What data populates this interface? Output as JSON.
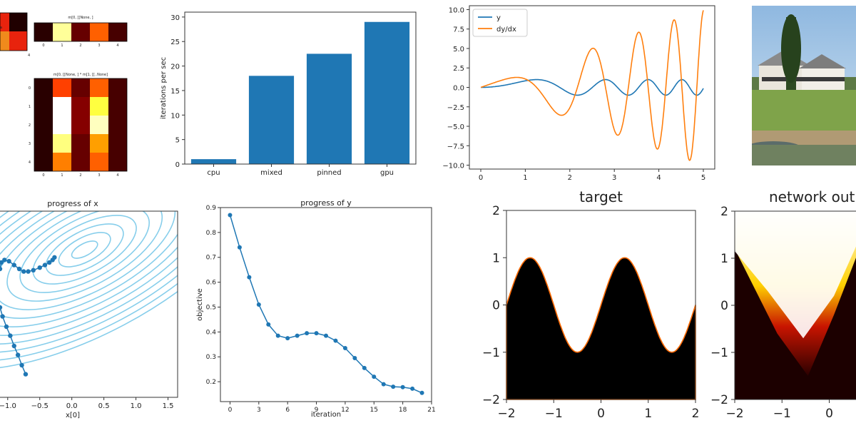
{
  "chart_data": [
    {
      "type": "heatmap",
      "panel": "heatmap-small-row",
      "title": "m[0, [[None, ]",
      "x_ticks": [
        "0",
        "1",
        "2",
        "3",
        "4"
      ],
      "values": [
        [
          0.05,
          0.92,
          0.15,
          0.55,
          0.1
        ]
      ]
    },
    {
      "type": "heatmap",
      "panel": "heatmap-product",
      "title": "m[0, [[None, ] * m[1, [[..None]",
      "x_ticks": [
        "0",
        "1",
        "2",
        "3",
        "4"
      ],
      "y_ticks": [
        "0",
        "1",
        "2",
        "3",
        "4"
      ],
      "values": [
        [
          0.05,
          0.5,
          0.15,
          0.55,
          0.1
        ],
        [
          0.05,
          1.0,
          0.2,
          0.85,
          0.1
        ],
        [
          0.05,
          1.0,
          0.2,
          0.95,
          0.1
        ],
        [
          0.05,
          0.9,
          0.15,
          0.65,
          0.1
        ],
        [
          0.05,
          0.6,
          0.15,
          0.55,
          0.1
        ]
      ]
    },
    {
      "type": "bar",
      "panel": "iterations-bar",
      "categories": [
        "cpu",
        "mixed",
        "pinned",
        "gpu"
      ],
      "values": [
        1,
        18,
        22.5,
        29
      ],
      "ylabel": "iterations per sec",
      "ylim": [
        0,
        31
      ],
      "y_ticks": [
        0,
        5,
        10,
        15,
        20,
        25,
        30
      ],
      "color": "#1f77b4"
    },
    {
      "type": "line",
      "panel": "derivative-line",
      "series": [
        {
          "name": "y",
          "color": "#1f77b4"
        },
        {
          "name": "dy/dx",
          "color": "#ff7f0e"
        }
      ],
      "x_range": [
        0,
        5
      ],
      "ylim": [
        -10.5,
        10.5
      ],
      "x_ticks": [
        0,
        1,
        2,
        3,
        4,
        5
      ],
      "y_ticks": [
        "10.0",
        "7.5",
        "5.0",
        "2.5",
        "0.0",
        "−2.5",
        "−5.0",
        "−7.5",
        "−10.0"
      ],
      "legend": "top-left"
    },
    {
      "type": "line",
      "panel": "progress-x",
      "title": "progress of x",
      "xlabel": "x[0]",
      "x_ticks": [
        "−1.0",
        "−0.5",
        "0.0",
        "0.5",
        "1.0",
        "1.5"
      ],
      "path_x": [
        -1.12,
        -1.1,
        -1.05,
        -0.98,
        -0.9,
        -0.82,
        -0.75,
        -0.68,
        -0.6,
        -0.5,
        -0.42,
        -0.35,
        -0.3,
        -0.27
      ],
      "path_y": [
        0.55,
        0.6,
        0.62,
        0.61,
        0.58,
        0.55,
        0.53,
        0.53,
        0.54,
        0.56,
        0.58,
        0.6,
        0.62,
        0.64
      ],
      "color": "#1f77b4",
      "contour_color": "#87ceeb"
    },
    {
      "type": "line",
      "panel": "progress-y",
      "title": "progress of y",
      "xlabel": "iteration",
      "ylabel": "objective",
      "x": [
        0,
        1,
        2,
        3,
        4,
        5,
        6,
        7,
        8,
        9,
        10,
        11,
        12,
        13,
        14,
        15,
        16,
        17,
        18,
        19,
        20
      ],
      "values": [
        0.87,
        0.74,
        0.62,
        0.51,
        0.43,
        0.385,
        0.375,
        0.385,
        0.395,
        0.395,
        0.385,
        0.365,
        0.335,
        0.295,
        0.255,
        0.22,
        0.19,
        0.18,
        0.178,
        0.172,
        0.155
      ],
      "x_ticks": [
        0,
        3,
        6,
        9,
        12,
        15,
        18,
        21
      ],
      "y_ticks": [
        "0.2",
        "0.3",
        "0.4",
        "0.5",
        "0.6",
        "0.7",
        "0.8",
        "0.9"
      ],
      "xlim": [
        -1,
        21
      ],
      "ylim": [
        0.12,
        0.9
      ],
      "color": "#1f77b4"
    },
    {
      "type": "heatmap",
      "panel": "target",
      "title": "target",
      "x_ticks": [
        "−2",
        "−1",
        "0",
        "1",
        "2"
      ],
      "y_ticks": [
        "2",
        "1",
        "0",
        "−1",
        "−2"
      ],
      "xlim": [
        -2,
        2
      ],
      "ylim": [
        -2,
        2
      ]
    },
    {
      "type": "heatmap",
      "panel": "network-output",
      "title": "network out",
      "x_ticks": [
        "−2",
        "−1",
        "0"
      ],
      "y_ticks": [
        "2",
        "1",
        "0",
        "−1",
        "−2"
      ]
    }
  ]
}
